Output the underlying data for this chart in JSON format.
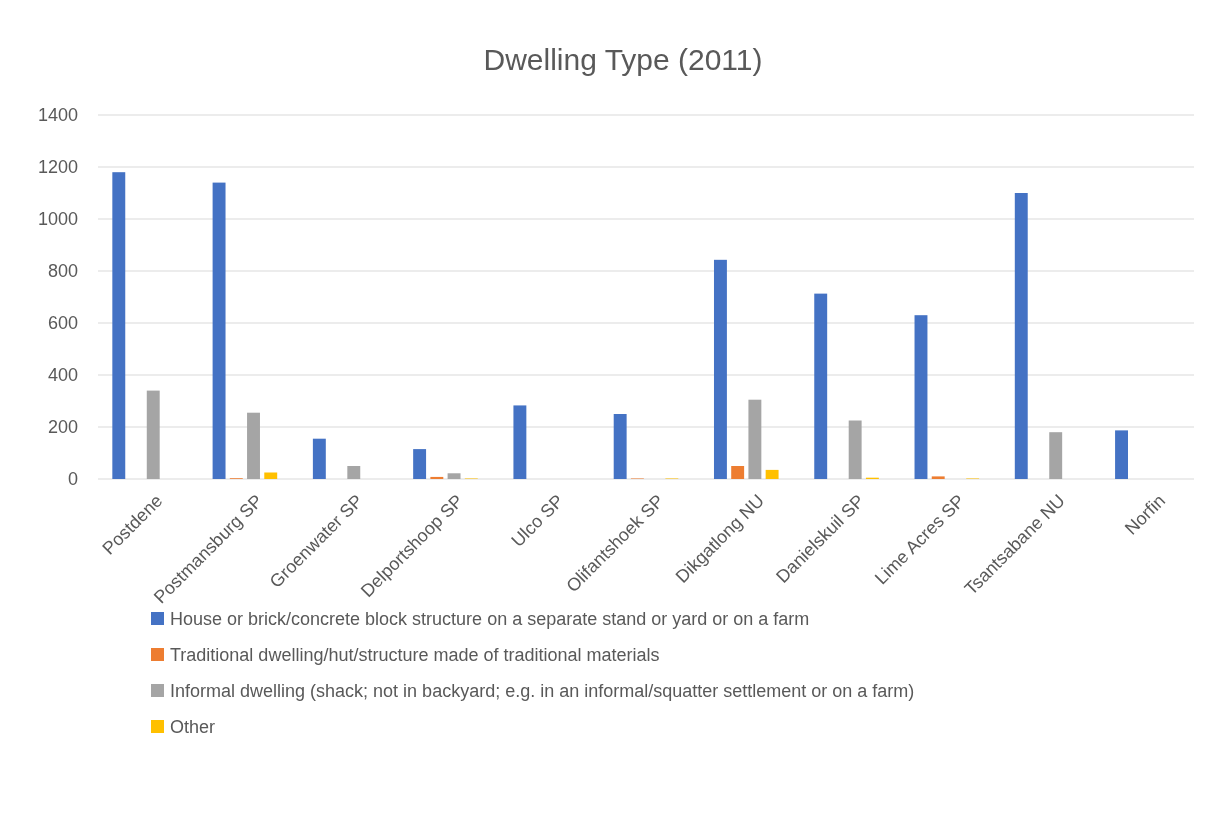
{
  "chart_data": {
    "type": "bar",
    "title": "Dwelling Type (2011)",
    "categories": [
      "Postdene",
      "Postmansburg SP",
      "Groenwater SP",
      "Delportshoop SP",
      "Ulco SP",
      "Olifantshoek SP",
      "Dikgatlong NU",
      "Danielskuil SP",
      "Lime Acres SP",
      "Tsantsabane NU",
      "Norfin"
    ],
    "series": [
      {
        "name": "House or brick/concrete block structure on a separate stand or yard or on a farm",
        "color": "#4472c4",
        "values": [
          1180,
          1140,
          155,
          115,
          283,
          250,
          843,
          713,
          630,
          1100,
          187
        ]
      },
      {
        "name": "Traditional dwelling/hut/structure made of traditional materials",
        "color": "#ed7d31",
        "values": [
          0,
          3,
          0,
          8,
          0,
          2,
          50,
          0,
          10,
          0,
          0
        ]
      },
      {
        "name": "Informal dwelling (shack; not in backyard; e.g. in an informal/squatter settlement or on a farm)",
        "color": "#a5a5a5",
        "values": [
          340,
          255,
          50,
          22,
          0,
          0,
          305,
          225,
          0,
          180,
          0
        ]
      },
      {
        "name": "Other",
        "color": "#ffc000",
        "values": [
          0,
          25,
          0,
          2,
          0,
          2,
          35,
          5,
          2,
          0,
          0
        ]
      }
    ],
    "ylim": [
      0,
      1400
    ],
    "yticks": [
      0,
      200,
      400,
      600,
      800,
      1000,
      1200,
      1400
    ],
    "grid": "y",
    "legend": "bottom"
  }
}
